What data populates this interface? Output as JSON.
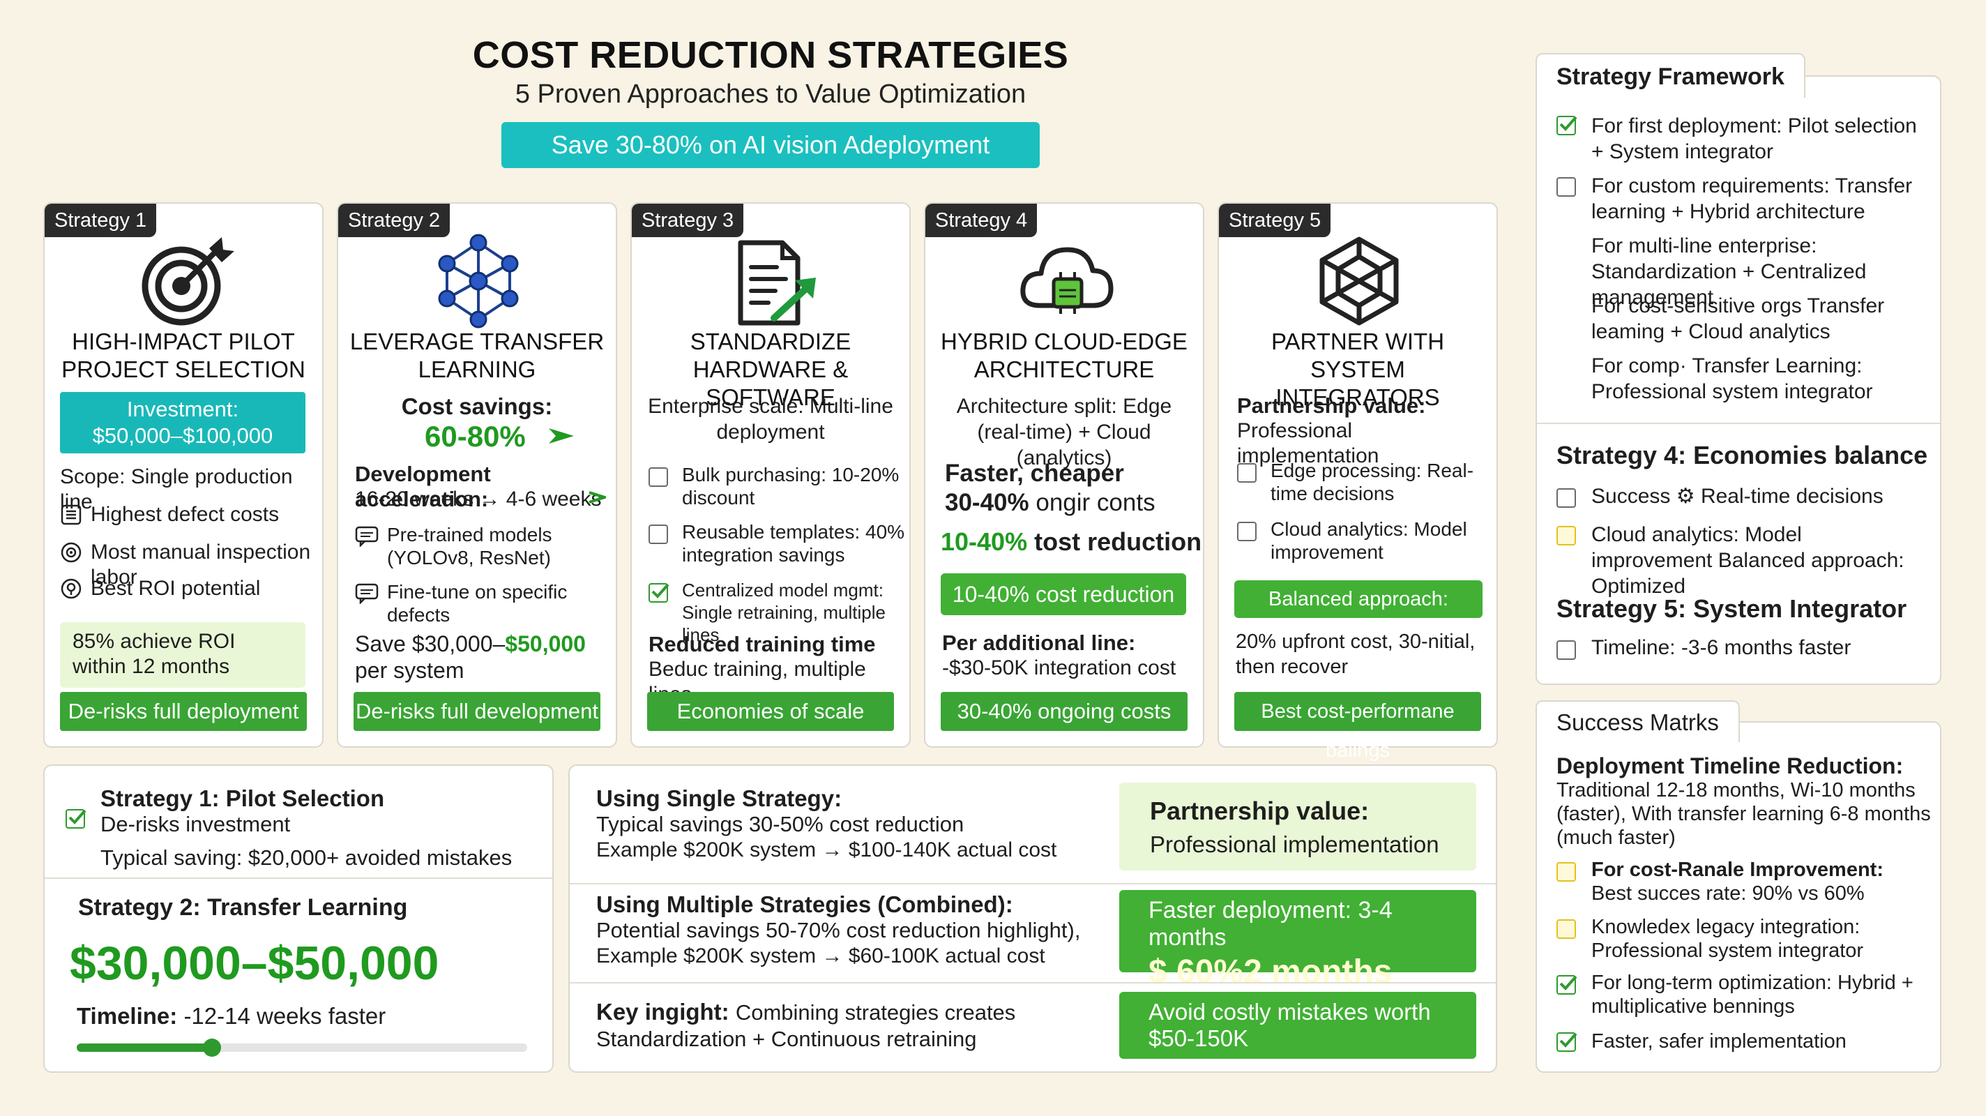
{
  "header": {
    "title": "COST REDUCTION STRATEGIES",
    "subtitle": "5 Proven Approaches to Value Optimization",
    "banner": "Save 30-80% on AI vision Adeployment"
  },
  "colors": {
    "teal": "#1bbfbf",
    "green": "#3aa535",
    "dark_tag": "#2b2b2b",
    "background": "#f8f3e4"
  },
  "strategies": [
    {
      "tag": "Strategy 1",
      "icon": "target-icon",
      "title": [
        "HIGH-IMPACT PILOT",
        "PROJECT SELECTION"
      ],
      "investment": "Investment: $50,000–$100,000",
      "scope": "Scope: Single production line",
      "items": [
        "Highest defect costs",
        "Most manual inspection labor",
        "Best ROI potential"
      ],
      "roi_note": "85% achieve ROI within 12 months",
      "footer": "De-risks full deployment"
    },
    {
      "tag": "Strategy 2",
      "icon": "neural-network-icon",
      "title": [
        "LEVERAGE TRANSFER",
        "LEARNING"
      ],
      "cost_label": "Cost savings:",
      "cost_value": "60-80%",
      "accel_label": "Development acceleration:",
      "accel_value": "16-20 weeks → 4-6 weeks",
      "items": [
        "Pre-trained models (YOLOv8, ResNet)",
        "Fine-tune on specific defects"
      ],
      "save_prefix": "Save $30,000–",
      "save_value": "$50,000",
      "save_suffix": "per system",
      "footer": "De-risks full development"
    },
    {
      "tag": "Strategy 3",
      "icon": "document-chart-icon",
      "title": [
        "STANDARDIZE",
        "HARDWARE & SOFTWARE"
      ],
      "intro": "Enterprise scale: Multi-line deployment",
      "items": [
        "Bulk purchasing: 10-20% discount",
        "Reusable templates: 40% integration savings",
        "Centralized model mgmt: Single retraining, multiple lines"
      ],
      "training_label": "Reduced training time",
      "training_text": "Beduc training, multiple lines",
      "footer": "Economies of scale"
    },
    {
      "tag": "Strategy 4",
      "icon": "cloud-chip-icon",
      "title": [
        "HYBRID CLOUD-EDGE",
        "ARCHITECTURE"
      ],
      "intro": "Architecture split: Edge (real-time) + Cloud (analytics)",
      "faster": "Faster, cheaper",
      "ongoing_pct": "30-40%",
      "ongoing_text": "ongir conts",
      "reduction_pct": "10-40%",
      "reduction_text": "tost reduction",
      "highlight": "10-40% cost reduction",
      "per_line_label": "Per additional line:",
      "per_line_value": "-$30-50K integration cost",
      "footer": "30-40% ongoing costs"
    },
    {
      "tag": "Strategy 5",
      "icon": "network-knot-icon",
      "title": [
        "PARTNER WITH",
        "SYSTEM INTEGRATORS"
      ],
      "partner_label": "Partnership value:",
      "partner_text": "Professional implementation",
      "items": [
        "Edge processing: Real-time decisions",
        "Cloud analytics: Model improvement"
      ],
      "highlight": "Balanced approach: Optimized",
      "note": "20% upfront cost, 30-nitial, then recover",
      "footer": "Best cost-performane balings"
    }
  ],
  "bottom_left": {
    "s1_title": "Strategy 1: Pilot Selection",
    "s1_item": "De-risks investment",
    "s1_saving": "Typical saving: $20,000+ avoided mistakes",
    "s2_title": "Strategy 2: Transfer Learning",
    "s2_value": "$30,000–$50,000",
    "timeline_label": "Timeline:",
    "timeline_value": "-12-14 weeks faster",
    "timeline_progress": 0.3
  },
  "bottom_middle": {
    "single_title": "Using Single Strategy:",
    "single_l1": "Typical savings 30-50% cost reduction",
    "single_l2": "Example $200K system → $100-140K actual cost",
    "partner_title": "Partnership value:",
    "partner_text": "Professional implementation",
    "multi_title": "Using Multiple Strategies (Combined):",
    "multi_l1": "Potential savings 50-70% cost reduction highlight),",
    "multi_l2": "Example $200K system → $60-100K actual cost",
    "faster_l1": "Faster deployment: 3-4 months",
    "faster_l2": "$  60%2 months",
    "insight_label": "Key ingight:",
    "insight_text": "Combining strategies creates",
    "insight_l2": "Standardization + Continuous retraining",
    "avoid_l1": "Avoid costly mistakes worth",
    "avoid_l2": "$50-150K"
  },
  "framework": {
    "tab": "Strategy Framework",
    "items": [
      {
        "text": "For first deployment: Pilot selection + System integrator",
        "checked": true
      },
      {
        "text": "For custom requirements: Transfer learning + Hybrid architecture",
        "checked": false
      },
      {
        "text": "For multi-line enterprise: Standardization + Centralized management"
      },
      {
        "text": "For cost-sensitive orgs Transfer leaming + Cloud analytics"
      },
      {
        "text": "For comp· Transfer Learning: Professional system integrator"
      }
    ],
    "s4_title": "Strategy 4:  Economies  balance",
    "s4_items": [
      "Success ⚙ Real-time decisions",
      "Cloud analytics: Model improvement Balanced approach: Optimized"
    ],
    "s5_title": "Strategy 5: System Integrator",
    "s5_item": "Timeline: -3-6 months faster"
  },
  "metrics": {
    "tab": "Success Matrks",
    "dtr_title": "Deployment Timeline Reduction:",
    "dtr_text": "Traditional 12-18 months, Wi-10 months (faster), With transfer learning 6-8 months (much faster)",
    "items": [
      {
        "title": "For cost-Ranale Improvement:",
        "text": "Best succes rate: 90% vs 60%",
        "style": "yellow"
      },
      {
        "title": "Knowledex legacy integration:",
        "text": "Professional system integrator",
        "style": "yellow"
      },
      {
        "title": "For long-term optimization: Hybrid + multiplicative bennings",
        "text": "",
        "style": "check"
      },
      {
        "title": "Faster, safer implementation",
        "text": "",
        "style": "check"
      }
    ]
  }
}
